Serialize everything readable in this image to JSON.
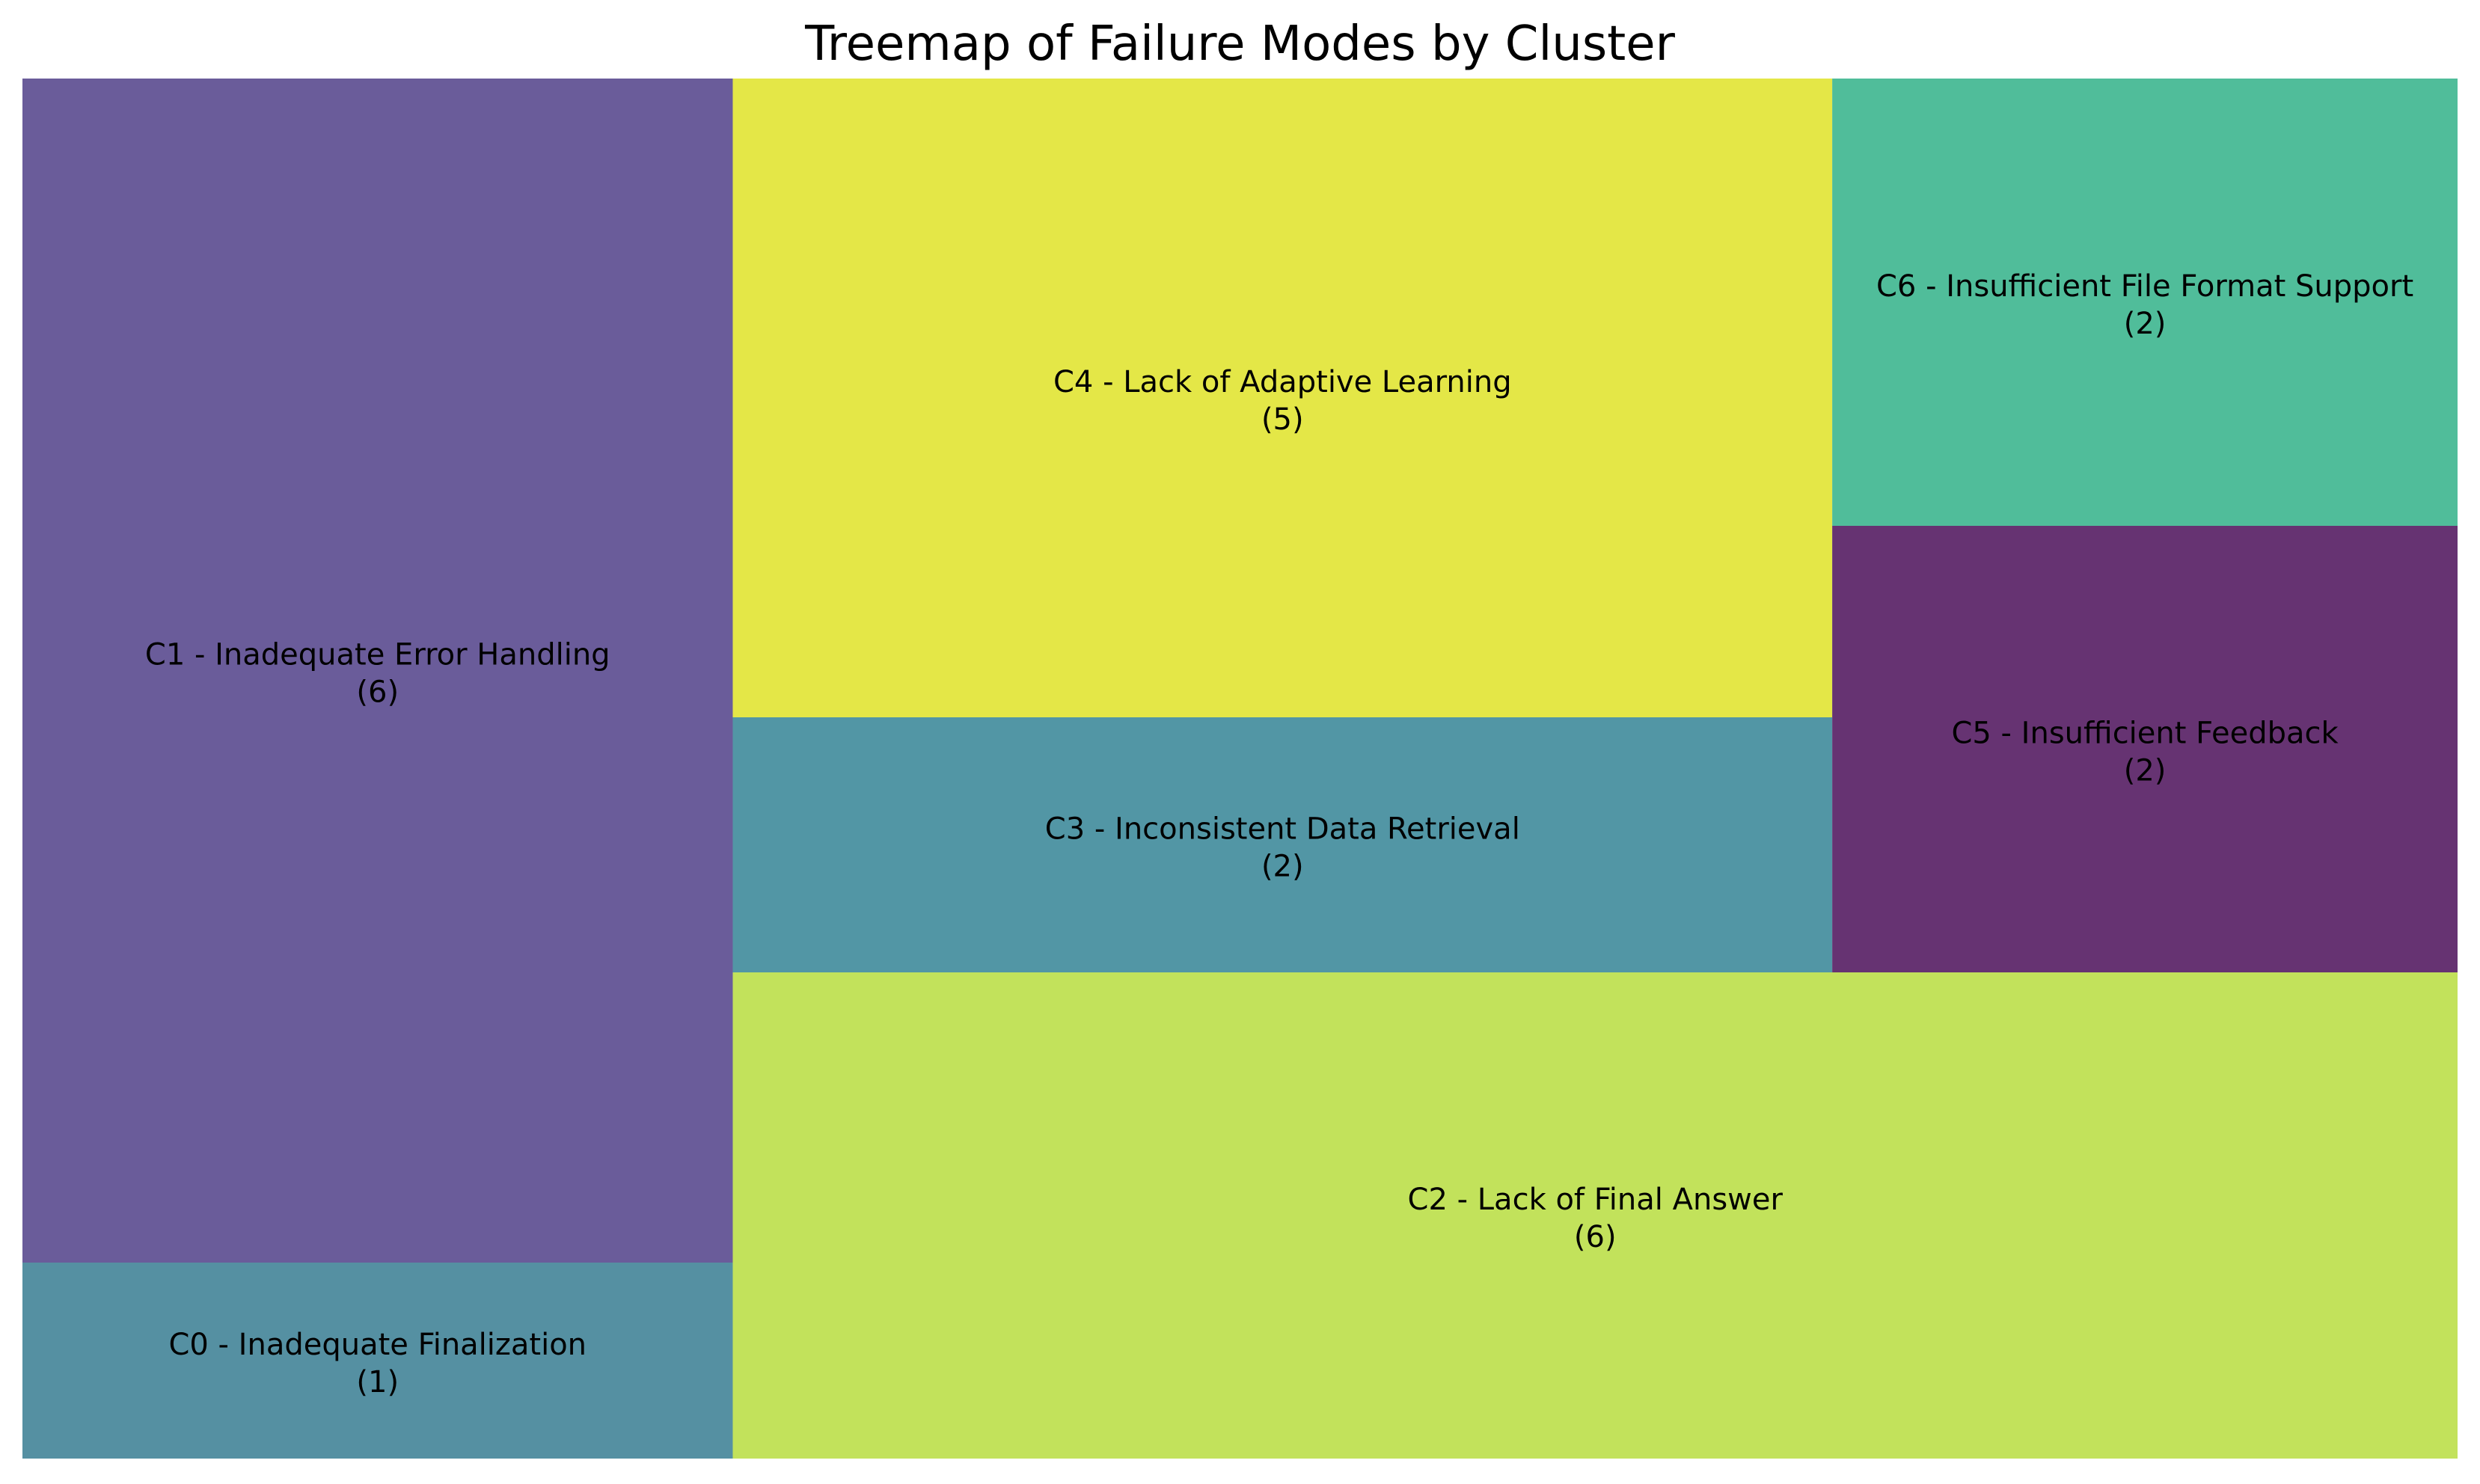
{
  "chart_data": {
    "type": "treemap",
    "title": "Treemap of Failure Modes by Cluster",
    "items": [
      {
        "label": "C1 - Inadequate Error Handling",
        "value": 6,
        "color": "#6a5c9a"
      },
      {
        "label": "C0 - Inadequate Finalization",
        "value": 1,
        "color": "#5590a2"
      },
      {
        "label": "C4 - Lack of Adaptive Learning",
        "value": 5,
        "color": "#e4e747"
      },
      {
        "label": "C3 - Inconsistent Data Retrieval",
        "value": 2,
        "color": "#5296a5"
      },
      {
        "label": "C2 - Lack of Final Answer",
        "value": 6,
        "color": "#c2e25b"
      },
      {
        "label": "C6 - Insufficient File Format Support",
        "value": 2,
        "color": "#50bd9a"
      },
      {
        "label": "C5 - Insufficient Feedback",
        "value": 2,
        "color": "#663372"
      }
    ]
  }
}
